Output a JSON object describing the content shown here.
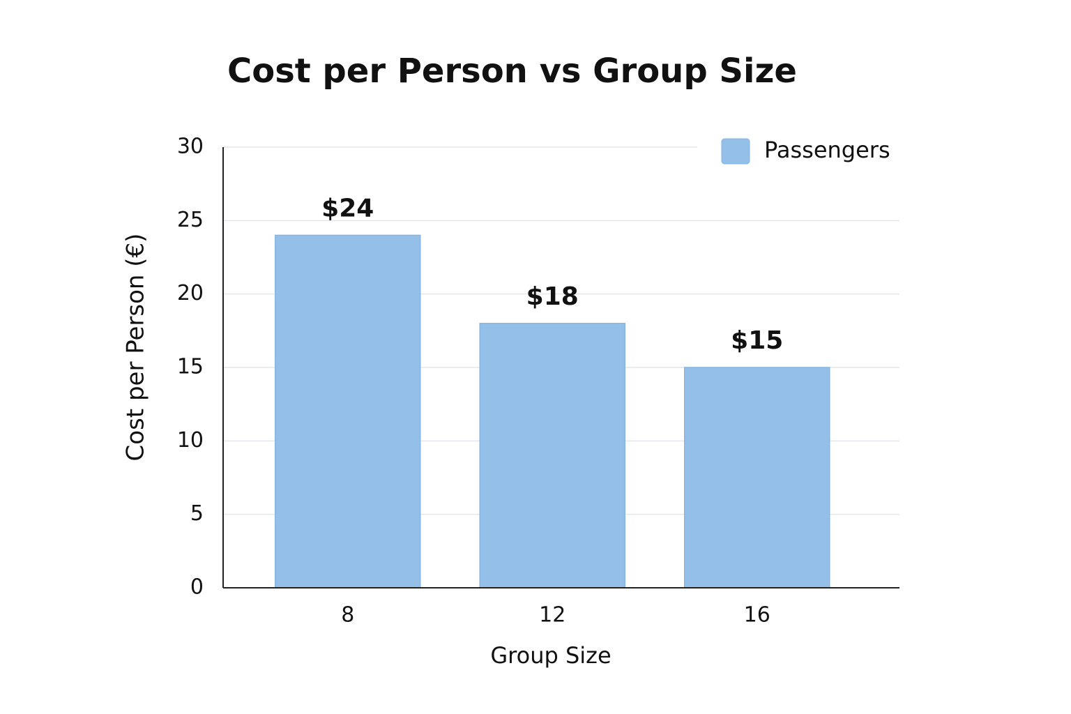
{
  "chart_data": {
    "type": "bar",
    "title": "Cost per Person vs Group Size",
    "x_label": "Group Size",
    "y_label": "Cost per Person (€)",
    "categories": [
      "8",
      "12",
      "16"
    ],
    "series": [
      {
        "name": "Passengers",
        "color": "#94bfe8",
        "values": [
          24,
          18,
          15
        ],
        "value_labels": [
          "$24",
          "$18",
          "$15"
        ]
      }
    ],
    "ylim": [
      0,
      30
    ],
    "yticks": [
      0,
      5,
      10,
      15,
      20,
      25,
      30
    ],
    "grid": true,
    "legend": "upper right"
  }
}
